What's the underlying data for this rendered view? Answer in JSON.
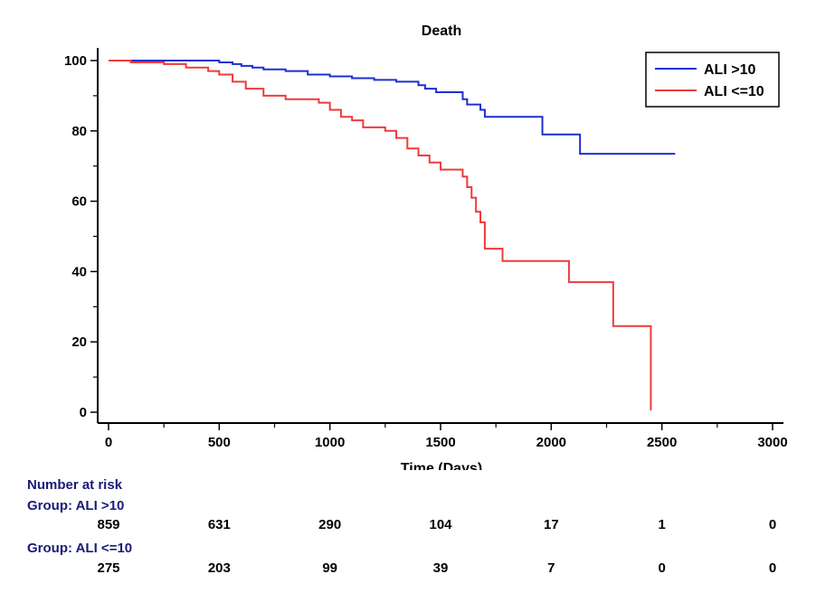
{
  "chart_data": {
    "type": "line",
    "title": "Death",
    "xlabel": "Time (Days)",
    "ylabel": "",
    "xlim": [
      0,
      3000
    ],
    "ylim": [
      0,
      100
    ],
    "xticks": [
      0,
      500,
      1000,
      1500,
      2000,
      2500,
      3000
    ],
    "yticks": [
      0,
      20,
      40,
      60,
      80,
      100
    ],
    "legend_position": "top-right",
    "series": [
      {
        "name": "ALI >10",
        "color": "#1f2fd0",
        "step": true,
        "x": [
          0,
          300,
          500,
          560,
          600,
          650,
          700,
          800,
          900,
          1000,
          1100,
          1200,
          1300,
          1400,
          1430,
          1480,
          1600,
          1620,
          1680,
          1700,
          1950,
          1960,
          2120,
          2130,
          2560
        ],
        "y": [
          100,
          100,
          99.5,
          99,
          98.5,
          98,
          97.5,
          97,
          96,
          95.5,
          95,
          94.5,
          94,
          93,
          92,
          91,
          89,
          87.5,
          86,
          84,
          84,
          79,
          79,
          73.5,
          73.5
        ]
      },
      {
        "name": "ALI <=10",
        "color": "#ee3b3b",
        "step": true,
        "x": [
          0,
          100,
          250,
          350,
          450,
          500,
          560,
          620,
          700,
          800,
          950,
          1000,
          1050,
          1100,
          1150,
          1250,
          1300,
          1350,
          1400,
          1450,
          1500,
          1600,
          1620,
          1640,
          1660,
          1680,
          1700,
          1780,
          2080,
          2280,
          2450
        ],
        "y": [
          100,
          99.5,
          99,
          98,
          97,
          96,
          94,
          92,
          90,
          89,
          88,
          86,
          84,
          83,
          81,
          80,
          78,
          75,
          73,
          71,
          69,
          67,
          64,
          61,
          57,
          54,
          46.5,
          43,
          37,
          24.5,
          0.5
        ]
      }
    ]
  },
  "risk_table": {
    "heading": "Number at risk",
    "groups": [
      {
        "label": "Group: ALI >10",
        "counts": [
          "859",
          "631",
          "290",
          "104",
          "17",
          "1",
          "0"
        ]
      },
      {
        "label": "Group: ALI <=10",
        "counts": [
          "275",
          "203",
          "99",
          "39",
          "7",
          "0",
          "0"
        ]
      }
    ]
  }
}
